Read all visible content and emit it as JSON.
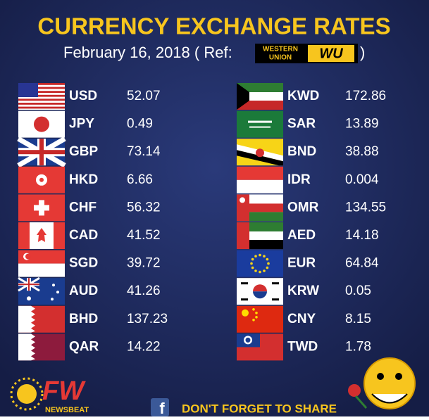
{
  "header": {
    "title": "CURRENCY EXCHANGE RATES",
    "date": "February 16, 2018 ( Ref:",
    "ref_close": ")",
    "logo_top": "WESTERN",
    "logo_bottom": "UNION",
    "logo_mark": "WU"
  },
  "left": [
    {
      "code": "USD",
      "rate": "52.07"
    },
    {
      "code": "JPY",
      "rate": "0.49"
    },
    {
      "code": "GBP",
      "rate": "73.14"
    },
    {
      "code": "HKD",
      "rate": "6.66"
    },
    {
      "code": "CHF",
      "rate": "56.32"
    },
    {
      "code": "CAD",
      "rate": "41.52"
    },
    {
      "code": "SGD",
      "rate": "39.72"
    },
    {
      "code": "AUD",
      "rate": "41.26"
    },
    {
      "code": "BHD",
      "rate": "137.23"
    },
    {
      "code": "QAR",
      "rate": "14.22"
    }
  ],
  "right": [
    {
      "code": "KWD",
      "rate": "172.86"
    },
    {
      "code": "SAR",
      "rate": "13.89"
    },
    {
      "code": "BND",
      "rate": "38.88"
    },
    {
      "code": "IDR",
      "rate": "0.004"
    },
    {
      "code": "OMR",
      "rate": "134.55"
    },
    {
      "code": "AED",
      "rate": "14.18"
    },
    {
      "code": "EUR",
      "rate": "64.84"
    },
    {
      "code": "KRW",
      "rate": "0.05"
    },
    {
      "code": "CNY",
      "rate": "8.15"
    },
    {
      "code": "TWD",
      "rate": "1.78"
    }
  ],
  "footer": {
    "brand": "FW",
    "brand_sub": "NEWSBEAT",
    "fb": "f",
    "share": "DON'T FORGET TO SHARE"
  }
}
